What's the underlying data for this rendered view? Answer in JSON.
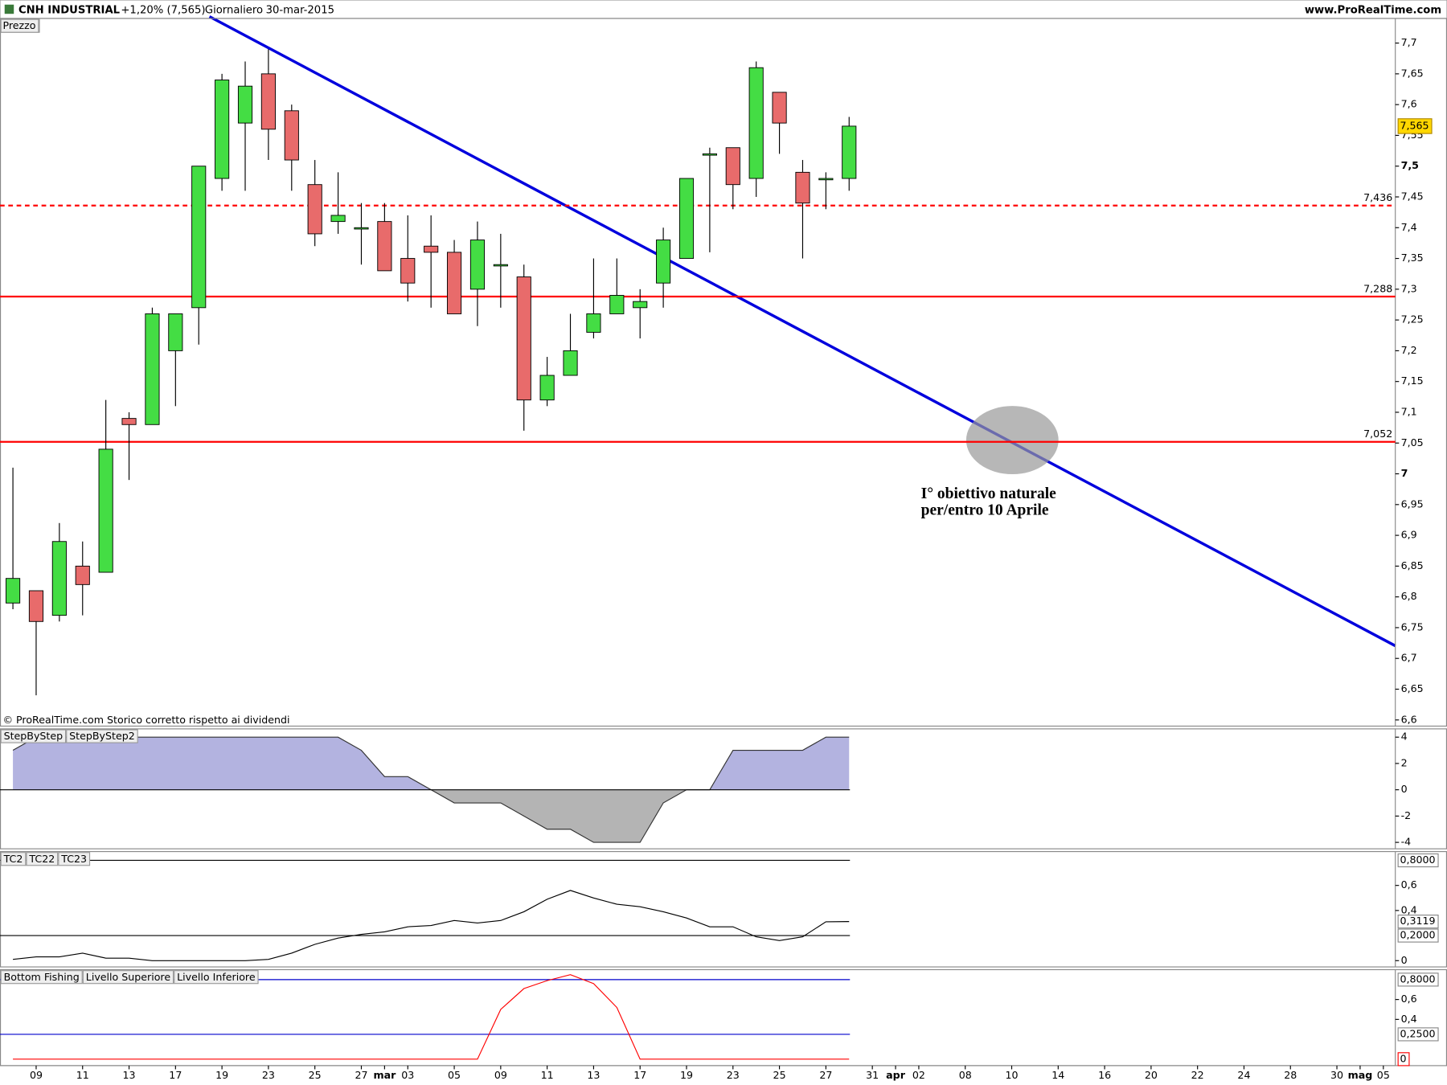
{
  "header": {
    "symbol": "CNH INDUSTRIAL",
    "change": "+1,20% (7,565)",
    "period": "Giornaliero",
    "date": "30-mar-2015",
    "site": "www.ProRealTime.com"
  },
  "footer": "© ProRealTime.com  Storico corretto rispetto ai dividendi",
  "annotation": [
    "I° obiettivo naturale",
    "per/entro 10 Aprile"
  ],
  "chart_data": [
    {
      "type": "candlestick",
      "label": "Prezzo",
      "categories": [
        null,
        "09",
        null,
        "11",
        null,
        "13",
        null,
        "17",
        null,
        "19",
        null,
        "23",
        null,
        "25",
        null,
        "27",
        "mar",
        "03",
        null,
        "05",
        null,
        "09",
        null,
        "11",
        null,
        "13",
        null,
        "17",
        null,
        "19",
        null,
        "23",
        null,
        "25",
        null,
        "27",
        null,
        "31",
        "apr",
        "02",
        null,
        "08",
        null,
        "10",
        null,
        "14",
        null,
        "16",
        null,
        "20",
        null,
        "22",
        null,
        "24",
        null,
        "28",
        null,
        "30",
        "mag",
        "05"
      ],
      "open": [
        6.79,
        6.81,
        6.77,
        6.85,
        6.84,
        7.09,
        7.08,
        7.2,
        7.27,
        7.48,
        7.57,
        7.65,
        7.59,
        7.47,
        7.41,
        7.4,
        7.41,
        7.35,
        7.37,
        7.36,
        7.3,
        7.34,
        7.32,
        7.12,
        7.16,
        7.23,
        7.26,
        7.27,
        7.31,
        7.35,
        7.52,
        7.53,
        7.48,
        7.62,
        7.49,
        7.48,
        7.48,
        null,
        null,
        null,
        null,
        null,
        null,
        null,
        null,
        null,
        null,
        null,
        null,
        null,
        null,
        null,
        null,
        null,
        null,
        null,
        null,
        null,
        null,
        null
      ],
      "high": [
        7.01,
        6.81,
        6.92,
        6.89,
        7.12,
        7.1,
        7.27,
        7.26,
        7.5,
        7.65,
        7.67,
        7.69,
        7.6,
        7.51,
        7.49,
        7.44,
        7.44,
        7.42,
        7.42,
        7.38,
        7.41,
        7.39,
        7.34,
        7.19,
        7.26,
        7.35,
        7.35,
        7.3,
        7.4,
        7.48,
        7.53,
        7.53,
        7.67,
        7.62,
        7.51,
        7.49,
        7.58,
        null,
        null,
        null,
        null,
        null,
        null,
        null,
        null,
        null,
        null,
        null,
        null,
        null,
        null,
        null,
        null,
        null,
        null,
        null,
        null,
        null,
        null,
        null
      ],
      "low": [
        6.78,
        6.64,
        6.76,
        6.77,
        6.84,
        6.99,
        7.08,
        7.11,
        7.21,
        7.46,
        7.46,
        7.51,
        7.46,
        7.37,
        7.39,
        7.34,
        7.33,
        7.28,
        7.27,
        7.26,
        7.24,
        7.27,
        7.07,
        7.11,
        7.16,
        7.22,
        7.26,
        7.22,
        7.27,
        7.35,
        7.36,
        7.43,
        7.45,
        7.52,
        7.35,
        7.43,
        7.46,
        null,
        null,
        null,
        null,
        null,
        null,
        null,
        null,
        null,
        null,
        null,
        null,
        null,
        null,
        null,
        null,
        null,
        null,
        null,
        null,
        null,
        null,
        null
      ],
      "close": [
        6.83,
        6.76,
        6.89,
        6.82,
        7.04,
        7.08,
        7.26,
        7.26,
        7.5,
        7.64,
        7.63,
        7.56,
        7.51,
        7.39,
        7.42,
        7.4,
        7.33,
        7.31,
        7.36,
        7.26,
        7.38,
        7.34,
        7.12,
        7.16,
        7.2,
        7.26,
        7.29,
        7.28,
        7.38,
        7.48,
        7.52,
        7.47,
        7.66,
        7.57,
        7.44,
        7.48,
        7.565,
        null,
        null,
        null,
        null,
        null,
        null,
        null,
        null,
        null,
        null,
        null,
        null,
        null,
        null,
        null,
        null,
        null,
        null,
        null,
        null,
        null,
        null,
        null
      ],
      "up_color": "#44dd44",
      "down_color": "#e86b6b",
      "ylim": [
        6.59,
        7.74
      ],
      "yticks": [
        {
          "value": 7.7,
          "label": "7,7"
        },
        {
          "value": 7.65,
          "label": "7,65"
        },
        {
          "value": 7.6,
          "label": "7,6"
        },
        {
          "value": 7.55,
          "label": "7,55"
        },
        {
          "value": 7.5,
          "label": "7,5"
        },
        {
          "value": 7.45,
          "label": "7,45"
        },
        {
          "value": 7.4,
          "label": "7,4"
        },
        {
          "value": 7.35,
          "label": "7,35"
        },
        {
          "value": 7.3,
          "label": "7,3"
        },
        {
          "value": 7.25,
          "label": "7,25"
        },
        {
          "value": 7.2,
          "label": "7,2"
        },
        {
          "value": 7.15,
          "label": "7,15"
        },
        {
          "value": 7.1,
          "label": "7,1"
        },
        {
          "value": 7.05,
          "label": "7,05"
        },
        7,
        {
          "value": 6.95,
          "label": "6,95"
        },
        {
          "value": 6.9,
          "label": "6,9"
        },
        {
          "value": 6.85,
          "label": "6,85"
        },
        {
          "value": 6.8,
          "label": "6,8"
        },
        {
          "value": 6.75,
          "label": "6,75"
        },
        {
          "value": 6.7,
          "label": "6,7"
        },
        {
          "value": 6.65,
          "label": "6,65"
        },
        {
          "value": 6.6,
          "label": "6,6"
        }
      ],
      "levels": [
        {
          "value": 7.436,
          "label": "7,436",
          "style": "dashed",
          "color": "#ff0000"
        },
        {
          "value": 7.288,
          "label": "7,288",
          "style": "solid",
          "color": "#ff0000"
        },
        {
          "value": 7.052,
          "label": "7,052",
          "style": "solid",
          "color": "#ff0000"
        }
      ],
      "last": {
        "value": 7.565,
        "label": "7,565"
      }
    },
    {
      "type": "area",
      "legend": [
        "StepByStep",
        "StepByStep2"
      ],
      "values": [
        3,
        4,
        4,
        4,
        4,
        4,
        4,
        4,
        4,
        4,
        4,
        4,
        4,
        4,
        4,
        3,
        1,
        1,
        0,
        -1,
        -1,
        -1,
        -2,
        -3,
        -3,
        -4,
        -4,
        -4,
        -1,
        0,
        0,
        3,
        3,
        3,
        3,
        4,
        4
      ],
      "pos_color": "#b3b3e0",
      "neg_color": "#b4b4b4",
      "ylim": [
        -4.49,
        4.63
      ],
      "yticks": [
        4,
        2,
        0,
        -2,
        -4
      ]
    },
    {
      "type": "line",
      "series": [
        {
          "name": "TC2",
          "color": "#000000",
          "values": [
            0.01,
            0.03,
            0.03,
            0.06,
            0.02,
            0.02,
            0,
            0,
            0,
            0,
            0,
            0.01,
            0.06,
            0.13,
            0.18,
            0.21,
            0.23,
            0.27,
            0.28,
            0.32,
            0.3,
            0.32,
            0.39,
            0.49,
            0.56,
            0.5,
            0.45,
            0.43,
            0.39,
            0.34,
            0.27,
            0.27,
            0.19,
            0.16,
            0.19,
            0.31,
            0.3119
          ]
        }
      ],
      "levels": [
        {
          "name": "TC22",
          "value": 0.8,
          "label": "0,8000",
          "color": "#000000"
        },
        {
          "name": "TC23",
          "value": 0.2,
          "label": "0,2000",
          "color": "#000000"
        }
      ],
      "last": {
        "value": 0.3119,
        "label": "0,3119"
      },
      "ylim": [
        -0.05,
        0.87
      ],
      "yticks": [
        {
          "value": 0.6,
          "label": "0,6"
        },
        {
          "value": 0.4,
          "label": "0,4"
        },
        0
      ]
    },
    {
      "type": "line",
      "series": [
        {
          "name": "Bottom Fishing",
          "color": "#ff0000",
          "values": [
            0,
            0,
            0,
            0,
            0,
            0,
            0,
            0,
            0,
            0,
            0,
            0,
            0,
            0,
            0,
            0,
            0,
            0,
            0,
            0,
            0,
            0.5,
            0.71,
            0.79,
            0.85,
            0.76,
            0.52,
            0,
            0,
            0,
            0,
            0,
            0,
            0,
            0,
            0,
            0
          ]
        }
      ],
      "levels": [
        {
          "name": "Livello Superiore",
          "value": 0.8,
          "label": "0,8000",
          "color": "#0000cc"
        },
        {
          "name": "Livello Inferiore",
          "value": 0.25,
          "label": "0,2500",
          "color": "#0000cc"
        }
      ],
      "last": 0,
      "ylim": [
        -0.065,
        0.9
      ],
      "yticks": [
        {
          "value": 0.6,
          "label": "0,6"
        },
        {
          "value": 0.4,
          "label": "0,4"
        }
      ]
    }
  ]
}
